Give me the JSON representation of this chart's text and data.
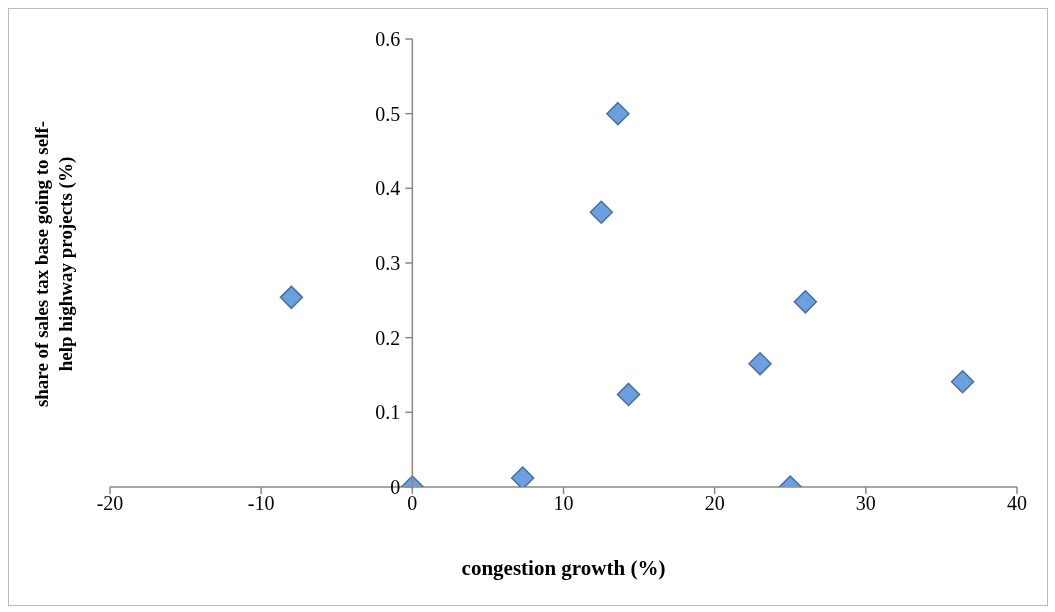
{
  "chart_data": {
    "type": "scatter",
    "xlabel": "congestion growth (%)",
    "ylabel": "share of sales tax base going to self-help highway projects (%)",
    "x": [
      -8,
      0,
      7.3,
      12.5,
      13.6,
      14.3,
      23,
      25,
      26,
      36.4
    ],
    "values": [
      0.254,
      0,
      0.012,
      0.368,
      0.5,
      0.124,
      0.165,
      0,
      0.248,
      0.141
    ],
    "color": "#6a9fe0",
    "marker": "diamond",
    "grid": false,
    "legend": false,
    "xlim": [
      -20,
      40
    ],
    "xticks": [
      -20,
      -10,
      0,
      10,
      20,
      30,
      40
    ],
    "ylim": [
      0,
      0.6
    ],
    "yticks": [
      0,
      0.1,
      0.2,
      0.3,
      0.4,
      0.5,
      0.6
    ]
  }
}
